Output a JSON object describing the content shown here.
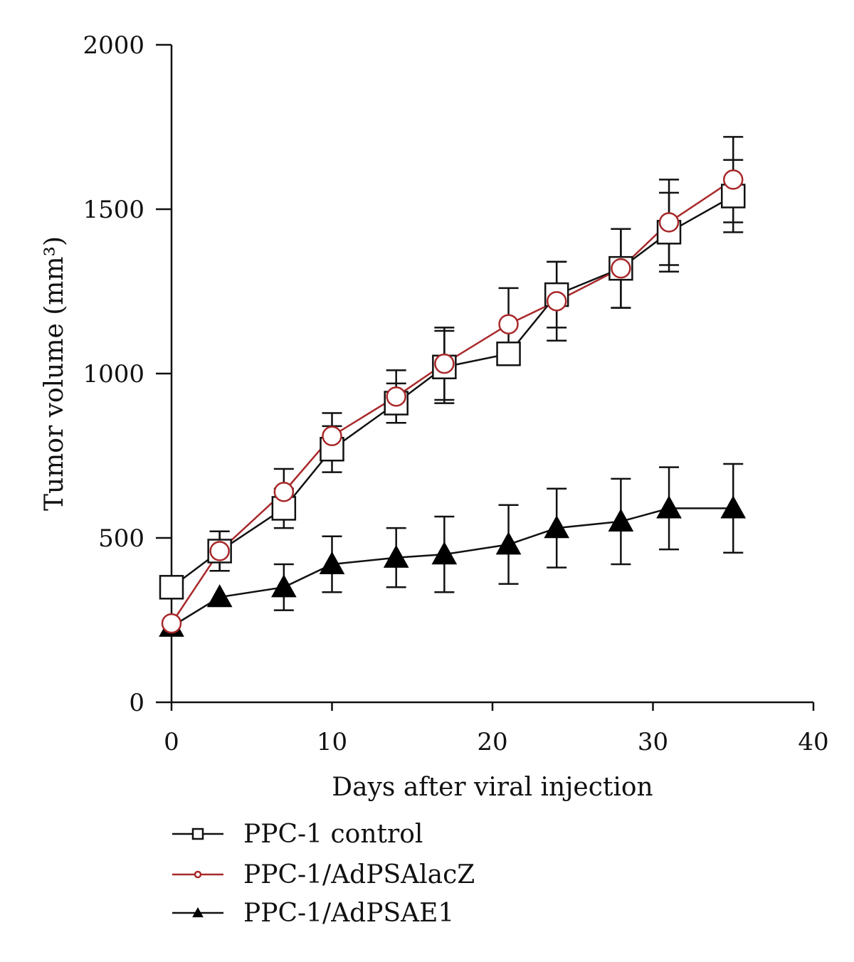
{
  "chart_data": {
    "type": "line",
    "title": "",
    "xlabel": "Days after viral injection",
    "ylabel": "Tumor volume (mm³)",
    "xlim": [
      0,
      40
    ],
    "ylim": [
      0,
      2000
    ],
    "xticks": [
      0,
      10,
      20,
      30,
      40
    ],
    "yticks": [
      0,
      500,
      1000,
      1500,
      2000
    ],
    "grid": false,
    "legend_position": "bottom",
    "x": [
      0,
      3,
      7,
      10,
      14,
      17,
      21,
      24,
      28,
      31,
      35
    ],
    "series": [
      {
        "name": "PPC-1 control",
        "marker": "square",
        "color": "#111111",
        "values": [
          350,
          460,
          590,
          770,
          910,
          1020,
          1060,
          1240,
          1320,
          1430,
          1540
        ],
        "errors": [
          0,
          60,
          60,
          70,
          60,
          110,
          0,
          100,
          120,
          120,
          110
        ]
      },
      {
        "name": "PPC-1/AdPSAlacZ",
        "marker": "circle",
        "color": "#a8282a",
        "values": [
          240,
          460,
          640,
          810,
          930,
          1030,
          1150,
          1220,
          1320,
          1460,
          1590
        ],
        "errors": [
          0,
          60,
          70,
          70,
          80,
          110,
          110,
          120,
          120,
          130,
          130
        ]
      },
      {
        "name": "PPC-1/AdPSAE1",
        "marker": "triangle",
        "color": "#111111",
        "values": [
          230,
          320,
          350,
          420,
          440,
          450,
          480,
          530,
          550,
          590,
          590
        ],
        "errors": [
          0,
          0,
          70,
          85,
          90,
          115,
          120,
          120,
          130,
          125,
          135
        ]
      }
    ]
  }
}
